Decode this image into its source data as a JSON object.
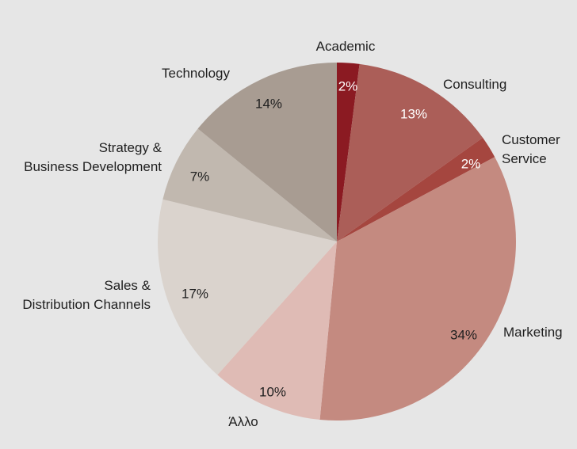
{
  "chart_data": {
    "type": "pie",
    "start_angle_deg": 0,
    "direction": "clockwise",
    "slices": [
      {
        "label": [
          "Academic"
        ],
        "value": 2,
        "display": "2%",
        "color": "#8b1a22",
        "label_color": "#ffffff"
      },
      {
        "label": [
          "Consulting"
        ],
        "value": 13,
        "display": "13%",
        "color": "#ab5e58",
        "label_color": "#ffffff"
      },
      {
        "label": [
          "Customer",
          "Service"
        ],
        "value": 2,
        "display": "2%",
        "color": "#a5463f",
        "label_color": "#ffffff"
      },
      {
        "label": [
          "Marketing"
        ],
        "value": 34,
        "display": "34%",
        "color": "#c48a80",
        "label_color": "#1f1f1f"
      },
      {
        "label": [
          "Άλλο"
        ],
        "value": 10,
        "display": "10%",
        "color": "#dfbbb5",
        "label_color": "#1f1f1f"
      },
      {
        "label": [
          "Sales &",
          "Distribution Channels"
        ],
        "value": 17,
        "display": "17%",
        "color": "#dad3cd",
        "label_color": "#1f1f1f"
      },
      {
        "label": [
          "Strategy &",
          "Business Development"
        ],
        "value": 7,
        "display": "7%",
        "color": "#c1b8af",
        "label_color": "#1f1f1f"
      },
      {
        "label": [
          "Technology"
        ],
        "value": 14,
        "display": "14%",
        "color": "#a89c92",
        "label_color": "#1f1f1f"
      }
    ]
  }
}
